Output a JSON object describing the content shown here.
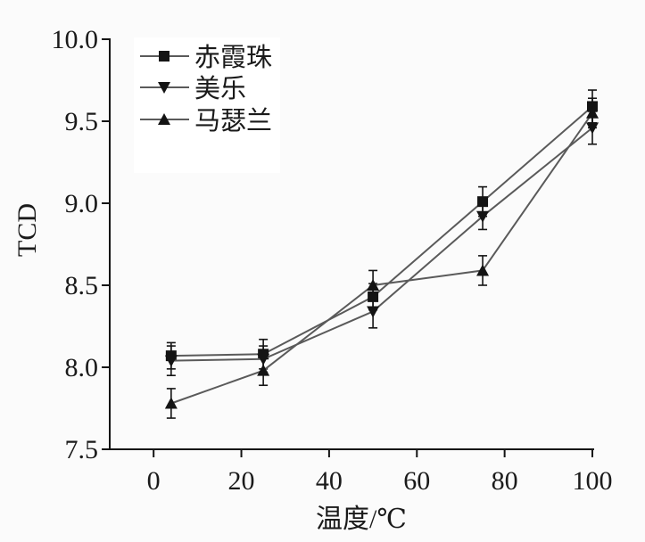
{
  "chart_data": {
    "type": "line",
    "error_bars": true,
    "grid": false,
    "legend": "top-left",
    "xlabel": "温度/℃",
    "ylabel": "TCD",
    "xlim": [
      -10,
      100
    ],
    "ylim": [
      7.5,
      10.0
    ],
    "xticks": [
      "0",
      "20",
      "40",
      "60",
      "80",
      "100"
    ],
    "yticks": [
      "7.5",
      "8.0",
      "8.5",
      "9.0",
      "9.5",
      "10.0"
    ],
    "x": [
      4,
      25,
      50,
      75,
      100
    ],
    "line_color": "#5a5a5a",
    "marker_color": "#141414",
    "series": [
      {
        "name": "赤霞珠",
        "marker": "square",
        "values": [
          8.07,
          8.08,
          8.43,
          9.01,
          9.59
        ],
        "errors": [
          0.08,
          0.09,
          0.08,
          0.09,
          0.1
        ]
      },
      {
        "name": "美乐",
        "marker": "triangle-down",
        "values": [
          8.04,
          8.05,
          8.34,
          8.92,
          9.46
        ],
        "errors": [
          0.09,
          0.08,
          0.1,
          0.08,
          0.1
        ]
      },
      {
        "name": "马瑟兰",
        "marker": "triangle-up",
        "values": [
          7.78,
          7.98,
          8.5,
          8.59,
          9.55
        ],
        "errors": [
          0.09,
          0.09,
          0.09,
          0.09,
          0.09
        ]
      }
    ]
  }
}
